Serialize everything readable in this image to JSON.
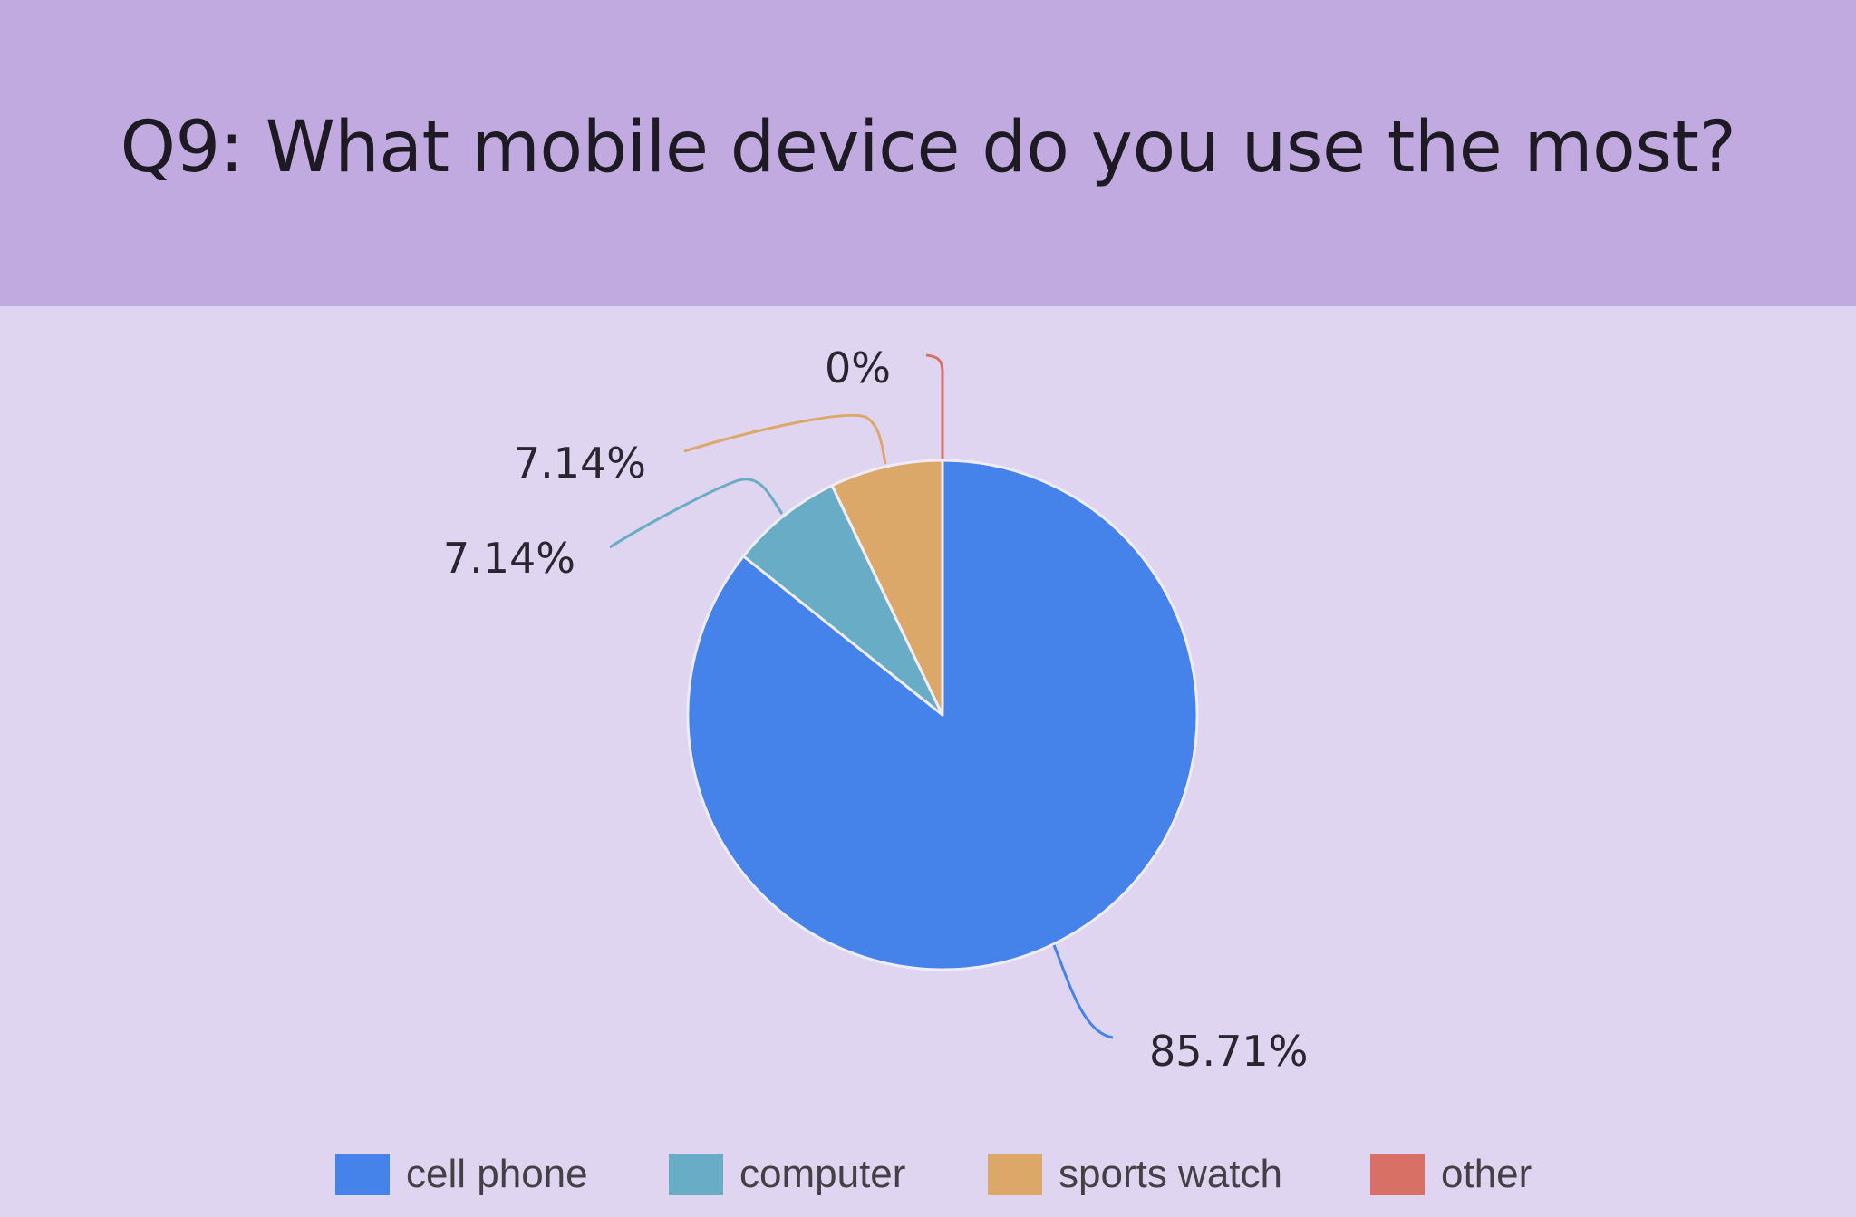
{
  "title": "Q9: What mobile device do you use the most?",
  "chart_data": {
    "type": "pie",
    "categories": [
      "cell phone",
      "computer",
      "sports watch",
      "other"
    ],
    "values": [
      85.71,
      7.14,
      7.14,
      0
    ],
    "data_labels": [
      "85.71%",
      "7.14%",
      "7.14%",
      "0%"
    ],
    "colors": [
      "#4582ea",
      "#68adc5",
      "#dca86a",
      "#d97065"
    ],
    "legend_position": "bottom"
  }
}
